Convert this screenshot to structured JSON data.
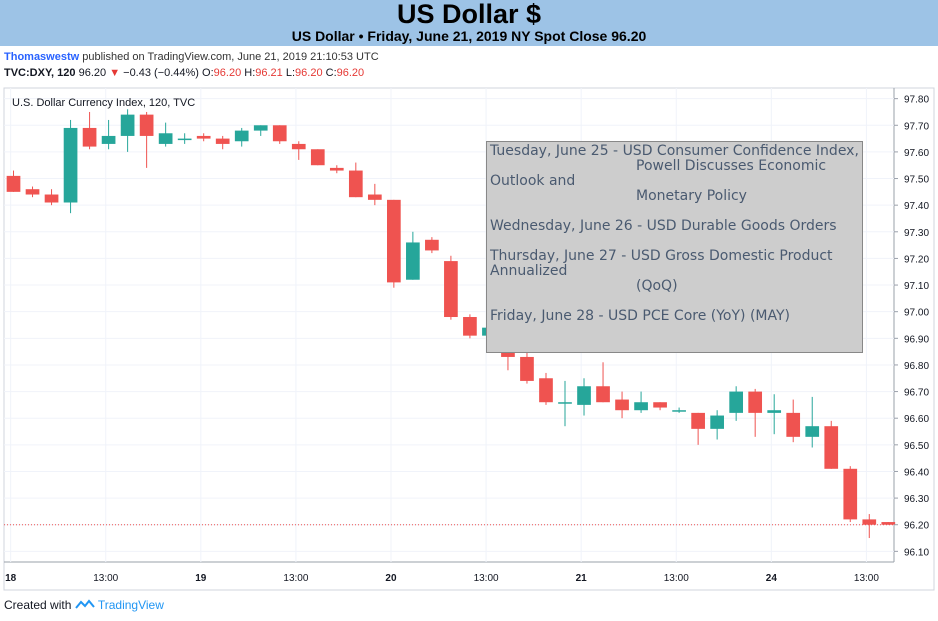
{
  "header": {
    "title": "US Dollar $",
    "subtitle": "US Dollar • Friday, June 21, 2019 NY Spot Close 96.20"
  },
  "publish": {
    "user": "Thomaswestw",
    "text": "published on TradingView.com, June 21, 2019 21:10:53 UTC"
  },
  "symbol_line": {
    "symbol": "TVC:DXY, 120",
    "price": "96.20",
    "change": "−0.43 (−0.44%)",
    "o_label": "O:",
    "o": "96.20",
    "h_label": "H:",
    "h": "96.21",
    "l_label": "L:",
    "l": "96.20",
    "c_label": "C:",
    "c": "96.20"
  },
  "footer": {
    "created_with": "Created with",
    "brand": "TradingView"
  },
  "notes": [
    {
      "text": "Tuesday, June 25 - USD Consumer Confidence Index,",
      "cont": "Powell Discusses Economic"
    },
    {
      "text": "Outlook and",
      "cont": "Monetary Policy"
    },
    {
      "text": "Wednesday, June 26 - USD Durable Goods Orders",
      "cont": ""
    },
    {
      "text": "Thursday, June 27 - USD Gross Domestic Product Annualized",
      "cont": "(QoQ)"
    },
    {
      "text": "Friday, June 28 - USD PCE Core (YoY) (MAY)",
      "cont": ""
    }
  ],
  "colors": {
    "up": "#26a69a",
    "down": "#ef5350",
    "header_bg": "#9dc3e6",
    "close_line": "#ef5350"
  },
  "chart_data": {
    "type": "candlestick",
    "title": "U.S. Dollar Currency Index, 120, TVC",
    "y_ticks": [
      "97.80",
      "97.70",
      "97.60",
      "97.50",
      "97.40",
      "97.30",
      "97.20",
      "97.10",
      "97.00",
      "96.90",
      "96.80",
      "96.70",
      "96.60",
      "96.50",
      "96.40",
      "96.30",
      "96.20",
      "96.10"
    ],
    "ylim": [
      96.06,
      97.84
    ],
    "x_ticks": [
      "18",
      "13:00",
      "19",
      "13:00",
      "20",
      "13:00",
      "21",
      "13:00",
      "24",
      "13:00"
    ],
    "x_tick_slots": [
      -0.15,
      4.85,
      9.85,
      14.85,
      19.85,
      24.85,
      29.85,
      34.85,
      39.85,
      44.85
    ],
    "x_slots_visible": [
      0,
      46.8
    ],
    "last_close": 96.2,
    "grid": true,
    "candles": [
      {
        "o": 97.51,
        "h": 97.53,
        "l": 97.45,
        "c": 97.45
      },
      {
        "o": 97.46,
        "h": 97.47,
        "l": 97.43,
        "c": 97.44
      },
      {
        "o": 97.44,
        "h": 97.46,
        "l": 97.4,
        "c": 97.41
      },
      {
        "o": 97.41,
        "h": 97.72,
        "l": 97.37,
        "c": 97.69
      },
      {
        "o": 97.69,
        "h": 97.75,
        "l": 97.61,
        "c": 97.62
      },
      {
        "o": 97.63,
        "h": 97.72,
        "l": 97.61,
        "c": 97.66
      },
      {
        "o": 97.66,
        "h": 97.76,
        "l": 97.6,
        "c": 97.74
      },
      {
        "o": 97.74,
        "h": 97.75,
        "l": 97.54,
        "c": 97.66
      },
      {
        "o": 97.63,
        "h": 97.71,
        "l": 97.62,
        "c": 97.67
      },
      {
        "o": 97.65,
        "h": 97.67,
        "l": 97.63,
        "c": 97.65
      },
      {
        "o": 97.66,
        "h": 97.67,
        "l": 97.64,
        "c": 97.65
      },
      {
        "o": 97.65,
        "h": 97.66,
        "l": 97.61,
        "c": 97.63
      },
      {
        "o": 97.64,
        "h": 97.69,
        "l": 97.62,
        "c": 97.68
      },
      {
        "o": 97.68,
        "h": 97.7,
        "l": 97.66,
        "c": 97.7
      },
      {
        "o": 97.7,
        "h": 97.7,
        "l": 97.63,
        "c": 97.64
      },
      {
        "o": 97.63,
        "h": 97.64,
        "l": 97.57,
        "c": 97.61
      },
      {
        "o": 97.61,
        "h": 97.61,
        "l": 97.55,
        "c": 97.55
      },
      {
        "o": 97.54,
        "h": 97.55,
        "l": 97.52,
        "c": 97.53
      },
      {
        "o": 97.53,
        "h": 97.56,
        "l": 97.43,
        "c": 97.43
      },
      {
        "o": 97.44,
        "h": 97.48,
        "l": 97.4,
        "c": 97.42
      },
      {
        "o": 97.42,
        "h": 97.42,
        "l": 97.09,
        "c": 97.11
      },
      {
        "o": 97.12,
        "h": 97.3,
        "l": 97.12,
        "c": 97.26
      },
      {
        "o": 97.27,
        "h": 97.28,
        "l": 97.22,
        "c": 97.23
      },
      {
        "o": 97.19,
        "h": 97.21,
        "l": 96.97,
        "c": 96.98
      },
      {
        "o": 96.98,
        "h": 96.99,
        "l": 96.9,
        "c": 96.91
      },
      {
        "o": 96.91,
        "h": 96.95,
        "l": 96.87,
        "c": 96.94
      },
      {
        "o": 96.94,
        "h": 96.95,
        "l": 96.78,
        "c": 96.83
      },
      {
        "o": 96.83,
        "h": 96.86,
        "l": 96.73,
        "c": 96.74
      },
      {
        "o": 96.75,
        "h": 96.77,
        "l": 96.65,
        "c": 96.66
      },
      {
        "o": 96.66,
        "h": 96.74,
        "l": 96.57,
        "c": 96.66
      },
      {
        "o": 96.65,
        "h": 96.75,
        "l": 96.61,
        "c": 96.72
      },
      {
        "o": 96.72,
        "h": 96.81,
        "l": 96.66,
        "c": 96.66
      },
      {
        "o": 96.67,
        "h": 96.7,
        "l": 96.6,
        "c": 96.63
      },
      {
        "o": 96.63,
        "h": 96.7,
        "l": 96.62,
        "c": 96.66
      },
      {
        "o": 96.66,
        "h": 96.66,
        "l": 96.63,
        "c": 96.64
      },
      {
        "o": 96.63,
        "h": 96.64,
        "l": 96.62,
        "c": 96.63
      },
      {
        "o": 96.62,
        "h": 96.62,
        "l": 96.5,
        "c": 96.56
      },
      {
        "o": 96.56,
        "h": 96.63,
        "l": 96.52,
        "c": 96.61
      },
      {
        "o": 96.62,
        "h": 96.72,
        "l": 96.59,
        "c": 96.7
      },
      {
        "o": 96.7,
        "h": 96.71,
        "l": 96.53,
        "c": 96.62
      },
      {
        "o": 96.62,
        "h": 96.69,
        "l": 96.54,
        "c": 96.63
      },
      {
        "o": 96.62,
        "h": 96.67,
        "l": 96.51,
        "c": 96.53
      },
      {
        "o": 96.53,
        "h": 96.68,
        "l": 96.49,
        "c": 96.57
      },
      {
        "o": 96.57,
        "h": 96.59,
        "l": 96.41,
        "c": 96.41
      },
      {
        "o": 96.41,
        "h": 96.42,
        "l": 96.21,
        "c": 96.22
      },
      {
        "o": 96.22,
        "h": 96.24,
        "l": 96.15,
        "c": 96.2
      },
      {
        "o": 96.21,
        "h": 96.21,
        "l": 96.2,
        "c": 96.2
      }
    ]
  }
}
